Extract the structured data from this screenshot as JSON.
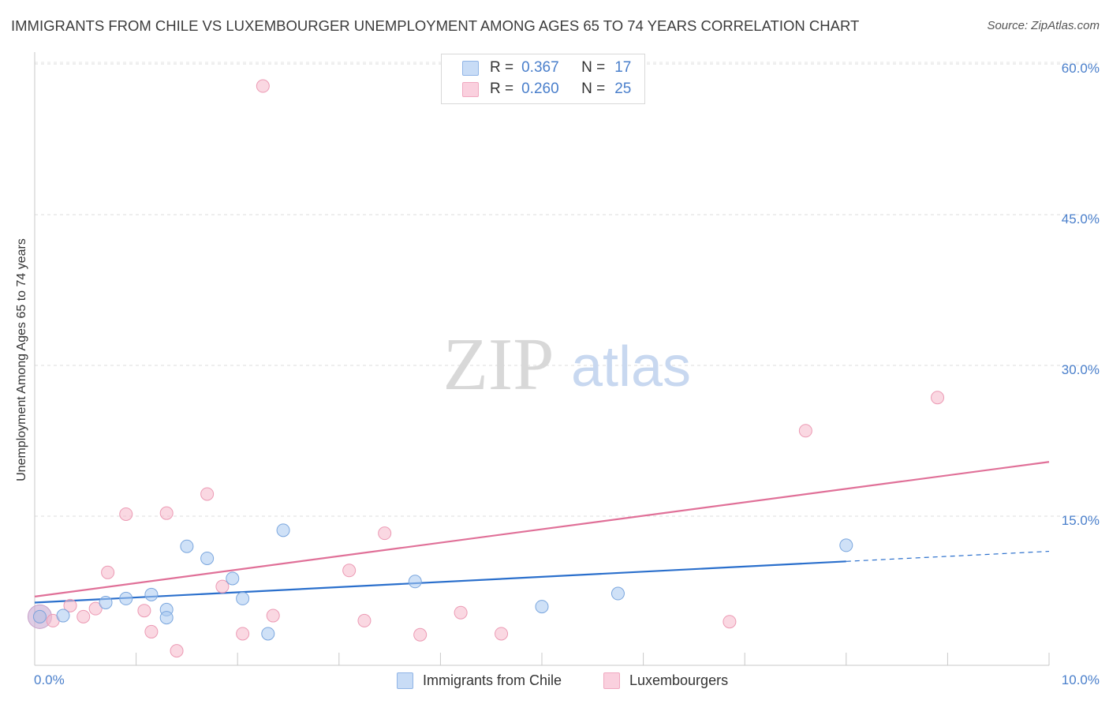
{
  "header": {
    "title": "IMMIGRANTS FROM CHILE VS LUXEMBOURGER UNEMPLOYMENT AMONG AGES 65 TO 74 YEARS CORRELATION CHART",
    "source": "Source: ZipAtlas.com"
  },
  "watermark": {
    "zip": "ZIP",
    "atlas": "atlas"
  },
  "legend": {
    "r_label": "R =",
    "n_label": "N =",
    "rows": [
      {
        "r": "0.367",
        "n": "17",
        "color": "#a8c8f0"
      },
      {
        "r": "0.260",
        "n": "25",
        "color": "#f5b8cb"
      }
    ]
  },
  "colors": {
    "blue_fill": "#a8c8f0",
    "blue_line": "#2a6fcc",
    "pink_fill": "#f5b8cb",
    "pink_line": "#e07098",
    "tick_text": "#4a7fcb"
  },
  "chart_data": {
    "type": "scatter",
    "title": "IMMIGRANTS FROM CHILE VS LUXEMBOURGER UNEMPLOYMENT AMONG AGES 65 TO 74 YEARS CORRELATION CHART",
    "xlabel": "",
    "ylabel": "Unemployment Among Ages 65 to 74 years",
    "xlim": [
      0,
      10
    ],
    "ylim": [
      0,
      61
    ],
    "x_tick_labels": [
      "0.0%",
      "10.0%"
    ],
    "y_tick_labels": [
      "15.0%",
      "30.0%",
      "45.0%",
      "60.0%"
    ],
    "y_tick_values": [
      15,
      30,
      45,
      60
    ],
    "grid": true,
    "legend_position": "top-center",
    "series": [
      {
        "name": "Immigrants from Chile",
        "color": "#a8c8f0",
        "points": [
          [
            0.05,
            5.0
          ],
          [
            0.28,
            5.1
          ],
          [
            0.7,
            6.4
          ],
          [
            0.9,
            6.8
          ],
          [
            1.15,
            7.2
          ],
          [
            1.3,
            5.7
          ],
          [
            1.3,
            4.9
          ],
          [
            1.5,
            12.0
          ],
          [
            1.7,
            10.8
          ],
          [
            1.95,
            8.8
          ],
          [
            2.05,
            6.8
          ],
          [
            2.3,
            3.3
          ],
          [
            2.45,
            13.6
          ],
          [
            3.75,
            8.5
          ],
          [
            5.0,
            6.0
          ],
          [
            5.75,
            7.3
          ],
          [
            8.0,
            12.1
          ]
        ],
        "trend": {
          "x": [
            0,
            8.0
          ],
          "y": [
            6.4,
            10.5
          ],
          "dashed_to": [
            10,
            11.5
          ]
        }
      },
      {
        "name": "Luxembourgers",
        "color": "#f5b8cb",
        "points": [
          [
            0.05,
            5.0
          ],
          [
            0.18,
            4.6
          ],
          [
            0.35,
            6.1
          ],
          [
            0.48,
            5.0
          ],
          [
            0.6,
            5.8
          ],
          [
            0.72,
            9.4
          ],
          [
            0.9,
            15.2
          ],
          [
            1.08,
            5.6
          ],
          [
            1.15,
            3.5
          ],
          [
            1.3,
            15.3
          ],
          [
            1.4,
            1.6
          ],
          [
            1.7,
            17.2
          ],
          [
            1.85,
            8.0
          ],
          [
            2.05,
            3.3
          ],
          [
            2.25,
            57.8
          ],
          [
            2.35,
            5.1
          ],
          [
            3.1,
            9.6
          ],
          [
            3.25,
            4.6
          ],
          [
            3.45,
            13.3
          ],
          [
            3.8,
            3.2
          ],
          [
            4.2,
            5.4
          ],
          [
            4.6,
            3.3
          ],
          [
            6.85,
            4.5
          ],
          [
            7.6,
            23.5
          ],
          [
            8.9,
            26.8
          ]
        ],
        "trend": {
          "x": [
            0,
            10
          ],
          "y": [
            7.0,
            20.4
          ]
        }
      }
    ]
  }
}
